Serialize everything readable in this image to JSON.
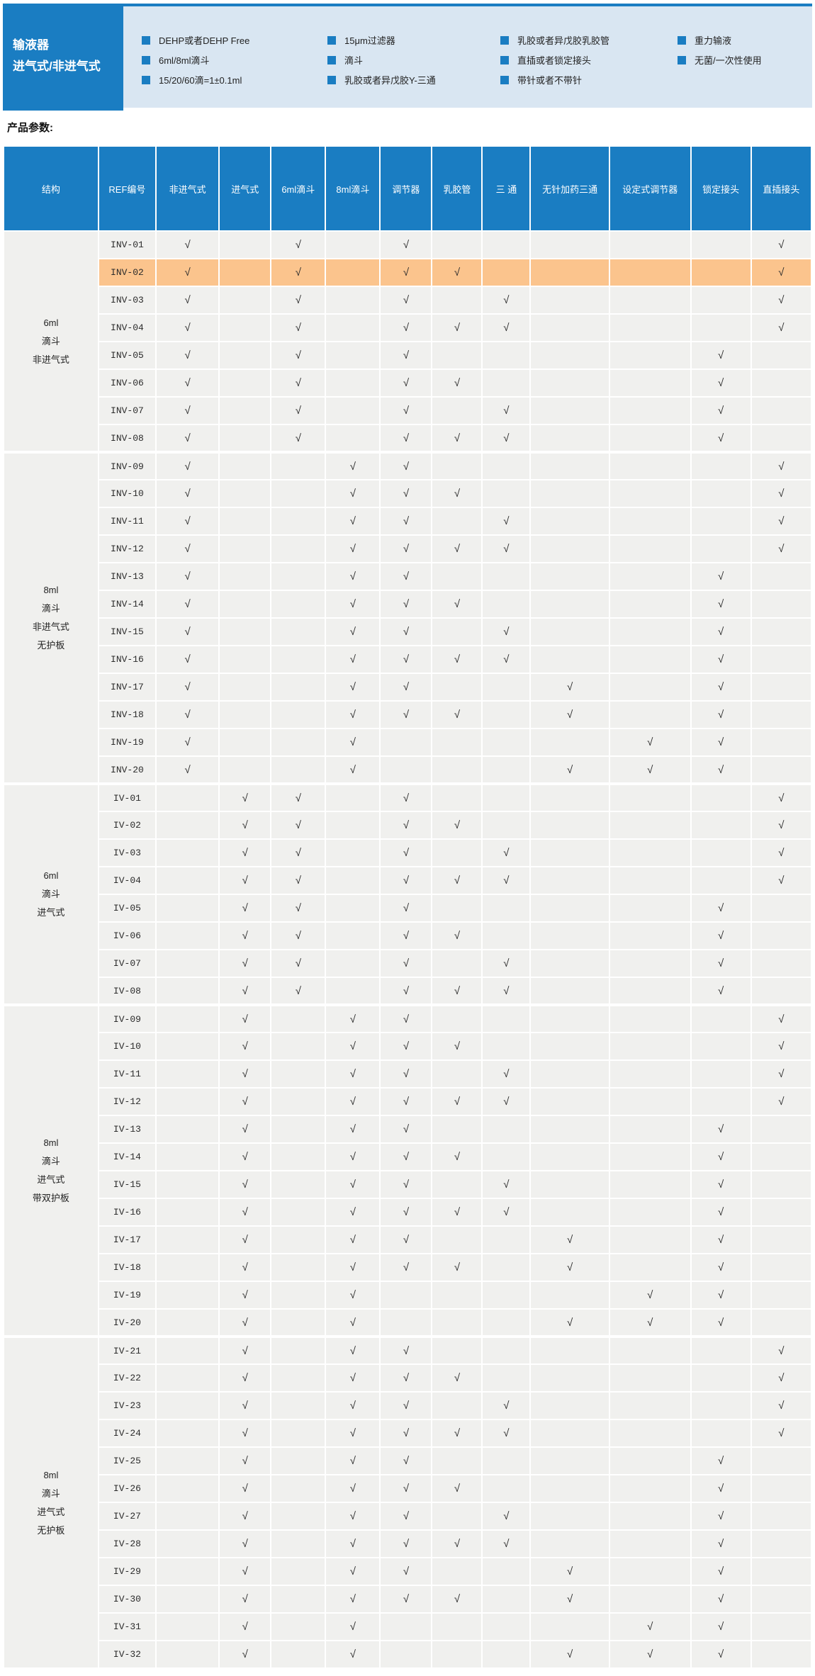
{
  "banner": {
    "title_line1": "输液器",
    "title_line2": "进气式/非进气式",
    "bullet_columns": [
      [
        "DEHP或者DEHP Free",
        "6ml/8ml滴斗",
        "15/20/60滴=1±0.1ml"
      ],
      [
        "15μm过滤器",
        "滴斗",
        "乳胶或者异戊胶Y-三通"
      ],
      [
        "乳胶或者异戊胶乳胶管",
        "直插或者锁定接头",
        "带针或者不带针"
      ],
      [
        "重力输液",
        "无菌/一次性使用"
      ]
    ]
  },
  "section_heading": "产品参数:",
  "colors": {
    "brand_blue": "#1a7dc2",
    "banner_light_blue": "#d9e6f2",
    "cell_gray": "#f0f0ee",
    "highlight_orange": "#fbc48d"
  },
  "table": {
    "check_glyph": "√",
    "headers": [
      "结构",
      "REF编号",
      "非进气式",
      "进气式",
      "6ml滴斗",
      "8ml滴斗",
      "调节器",
      "乳胶管",
      "三 通",
      "无针加药三通",
      "设定式调节器",
      "锁定接头",
      "直插接头"
    ],
    "feature_column_count": 11,
    "groups": [
      {
        "structure_lines": [
          "6ml",
          "滴斗",
          "非进气式"
        ],
        "rows": [
          {
            "ref": "INV-01",
            "highlight": false,
            "features": [
              1,
              0,
              1,
              0,
              1,
              0,
              0,
              0,
              0,
              0,
              1
            ]
          },
          {
            "ref": "INV-02",
            "highlight": true,
            "features": [
              1,
              0,
              1,
              0,
              1,
              1,
              0,
              0,
              0,
              0,
              1
            ]
          },
          {
            "ref": "INV-03",
            "highlight": false,
            "features": [
              1,
              0,
              1,
              0,
              1,
              0,
              1,
              0,
              0,
              0,
              1
            ]
          },
          {
            "ref": "INV-04",
            "highlight": false,
            "features": [
              1,
              0,
              1,
              0,
              1,
              1,
              1,
              0,
              0,
              0,
              1
            ]
          },
          {
            "ref": "INV-05",
            "highlight": false,
            "features": [
              1,
              0,
              1,
              0,
              1,
              0,
              0,
              0,
              0,
              1,
              0
            ]
          },
          {
            "ref": "INV-06",
            "highlight": false,
            "features": [
              1,
              0,
              1,
              0,
              1,
              1,
              0,
              0,
              0,
              1,
              0
            ]
          },
          {
            "ref": "INV-07",
            "highlight": false,
            "features": [
              1,
              0,
              1,
              0,
              1,
              0,
              1,
              0,
              0,
              1,
              0
            ]
          },
          {
            "ref": "INV-08",
            "highlight": false,
            "features": [
              1,
              0,
              1,
              0,
              1,
              1,
              1,
              0,
              0,
              1,
              0
            ]
          }
        ]
      },
      {
        "structure_lines": [
          "8ml",
          "滴斗",
          "非进气式",
          "无护板"
        ],
        "rows": [
          {
            "ref": "INV-09",
            "highlight": false,
            "features": [
              1,
              0,
              0,
              1,
              1,
              0,
              0,
              0,
              0,
              0,
              1
            ]
          },
          {
            "ref": "INV-10",
            "highlight": false,
            "features": [
              1,
              0,
              0,
              1,
              1,
              1,
              0,
              0,
              0,
              0,
              1
            ]
          },
          {
            "ref": "INV-11",
            "highlight": false,
            "features": [
              1,
              0,
              0,
              1,
              1,
              0,
              1,
              0,
              0,
              0,
              1
            ]
          },
          {
            "ref": "INV-12",
            "highlight": false,
            "features": [
              1,
              0,
              0,
              1,
              1,
              1,
              1,
              0,
              0,
              0,
              1
            ]
          },
          {
            "ref": "INV-13",
            "highlight": false,
            "features": [
              1,
              0,
              0,
              1,
              1,
              0,
              0,
              0,
              0,
              1,
              0
            ]
          },
          {
            "ref": "INV-14",
            "highlight": false,
            "features": [
              1,
              0,
              0,
              1,
              1,
              1,
              0,
              0,
              0,
              1,
              0
            ]
          },
          {
            "ref": "INV-15",
            "highlight": false,
            "features": [
              1,
              0,
              0,
              1,
              1,
              0,
              1,
              0,
              0,
              1,
              0
            ]
          },
          {
            "ref": "INV-16",
            "highlight": false,
            "features": [
              1,
              0,
              0,
              1,
              1,
              1,
              1,
              0,
              0,
              1,
              0
            ]
          },
          {
            "ref": "INV-17",
            "highlight": false,
            "features": [
              1,
              0,
              0,
              1,
              1,
              0,
              0,
              1,
              0,
              1,
              0
            ]
          },
          {
            "ref": "INV-18",
            "highlight": false,
            "features": [
              1,
              0,
              0,
              1,
              1,
              1,
              0,
              1,
              0,
              1,
              0
            ]
          },
          {
            "ref": "INV-19",
            "highlight": false,
            "features": [
              1,
              0,
              0,
              1,
              0,
              0,
              0,
              0,
              1,
              1,
              0
            ]
          },
          {
            "ref": "INV-20",
            "highlight": false,
            "features": [
              1,
              0,
              0,
              1,
              0,
              0,
              0,
              1,
              1,
              1,
              0
            ]
          }
        ]
      },
      {
        "structure_lines": [
          "6ml",
          "滴斗",
          "进气式"
        ],
        "rows": [
          {
            "ref": "IV-01",
            "highlight": false,
            "features": [
              0,
              1,
              1,
              0,
              1,
              0,
              0,
              0,
              0,
              0,
              1
            ]
          },
          {
            "ref": "IV-02",
            "highlight": false,
            "features": [
              0,
              1,
              1,
              0,
              1,
              1,
              0,
              0,
              0,
              0,
              1
            ]
          },
          {
            "ref": "IV-03",
            "highlight": false,
            "features": [
              0,
              1,
              1,
              0,
              1,
              0,
              1,
              0,
              0,
              0,
              1
            ]
          },
          {
            "ref": "IV-04",
            "highlight": false,
            "features": [
              0,
              1,
              1,
              0,
              1,
              1,
              1,
              0,
              0,
              0,
              1
            ]
          },
          {
            "ref": "IV-05",
            "highlight": false,
            "features": [
              0,
              1,
              1,
              0,
              1,
              0,
              0,
              0,
              0,
              1,
              0
            ]
          },
          {
            "ref": "IV-06",
            "highlight": false,
            "features": [
              0,
              1,
              1,
              0,
              1,
              1,
              0,
              0,
              0,
              1,
              0
            ]
          },
          {
            "ref": "IV-07",
            "highlight": false,
            "features": [
              0,
              1,
              1,
              0,
              1,
              0,
              1,
              0,
              0,
              1,
              0
            ]
          },
          {
            "ref": "IV-08",
            "highlight": false,
            "features": [
              0,
              1,
              1,
              0,
              1,
              1,
              1,
              0,
              0,
              1,
              0
            ]
          }
        ]
      },
      {
        "structure_lines": [
          "8ml",
          "滴斗",
          "进气式",
          "带双护板"
        ],
        "rows": [
          {
            "ref": "IV-09",
            "highlight": false,
            "features": [
              0,
              1,
              0,
              1,
              1,
              0,
              0,
              0,
              0,
              0,
              1
            ]
          },
          {
            "ref": "IV-10",
            "highlight": false,
            "features": [
              0,
              1,
              0,
              1,
              1,
              1,
              0,
              0,
              0,
              0,
              1
            ]
          },
          {
            "ref": "IV-11",
            "highlight": false,
            "features": [
              0,
              1,
              0,
              1,
              1,
              0,
              1,
              0,
              0,
              0,
              1
            ]
          },
          {
            "ref": "IV-12",
            "highlight": false,
            "features": [
              0,
              1,
              0,
              1,
              1,
              1,
              1,
              0,
              0,
              0,
              1
            ]
          },
          {
            "ref": "IV-13",
            "highlight": false,
            "features": [
              0,
              1,
              0,
              1,
              1,
              0,
              0,
              0,
              0,
              1,
              0
            ]
          },
          {
            "ref": "IV-14",
            "highlight": false,
            "features": [
              0,
              1,
              0,
              1,
              1,
              1,
              0,
              0,
              0,
              1,
              0
            ]
          },
          {
            "ref": "IV-15",
            "highlight": false,
            "features": [
              0,
              1,
              0,
              1,
              1,
              0,
              1,
              0,
              0,
              1,
              0
            ]
          },
          {
            "ref": "IV-16",
            "highlight": false,
            "features": [
              0,
              1,
              0,
              1,
              1,
              1,
              1,
              0,
              0,
              1,
              0
            ]
          },
          {
            "ref": "IV-17",
            "highlight": false,
            "features": [
              0,
              1,
              0,
              1,
              1,
              0,
              0,
              1,
              0,
              1,
              0
            ]
          },
          {
            "ref": "IV-18",
            "highlight": false,
            "features": [
              0,
              1,
              0,
              1,
              1,
              1,
              0,
              1,
              0,
              1,
              0
            ]
          },
          {
            "ref": "IV-19",
            "highlight": false,
            "features": [
              0,
              1,
              0,
              1,
              0,
              0,
              0,
              0,
              1,
              1,
              0
            ]
          },
          {
            "ref": "IV-20",
            "highlight": false,
            "features": [
              0,
              1,
              0,
              1,
              0,
              0,
              0,
              1,
              1,
              1,
              0
            ]
          }
        ]
      },
      {
        "structure_lines": [
          "8ml",
          "滴斗",
          "进气式",
          "无护板"
        ],
        "rows": [
          {
            "ref": "IV-21",
            "highlight": false,
            "features": [
              0,
              1,
              0,
              1,
              1,
              0,
              0,
              0,
              0,
              0,
              1
            ]
          },
          {
            "ref": "IV-22",
            "highlight": false,
            "features": [
              0,
              1,
              0,
              1,
              1,
              1,
              0,
              0,
              0,
              0,
              1
            ]
          },
          {
            "ref": "IV-23",
            "highlight": false,
            "features": [
              0,
              1,
              0,
              1,
              1,
              0,
              1,
              0,
              0,
              0,
              1
            ]
          },
          {
            "ref": "IV-24",
            "highlight": false,
            "features": [
              0,
              1,
              0,
              1,
              1,
              1,
              1,
              0,
              0,
              0,
              1
            ]
          },
          {
            "ref": "IV-25",
            "highlight": false,
            "features": [
              0,
              1,
              0,
              1,
              1,
              0,
              0,
              0,
              0,
              1,
              0
            ]
          },
          {
            "ref": "IV-26",
            "highlight": false,
            "features": [
              0,
              1,
              0,
              1,
              1,
              1,
              0,
              0,
              0,
              1,
              0
            ]
          },
          {
            "ref": "IV-27",
            "highlight": false,
            "features": [
              0,
              1,
              0,
              1,
              1,
              0,
              1,
              0,
              0,
              1,
              0
            ]
          },
          {
            "ref": "IV-28",
            "highlight": false,
            "features": [
              0,
              1,
              0,
              1,
              1,
              1,
              1,
              0,
              0,
              1,
              0
            ]
          },
          {
            "ref": "IV-29",
            "highlight": false,
            "features": [
              0,
              1,
              0,
              1,
              1,
              0,
              0,
              1,
              0,
              1,
              0
            ]
          },
          {
            "ref": "IV-30",
            "highlight": false,
            "features": [
              0,
              1,
              0,
              1,
              1,
              1,
              0,
              1,
              0,
              1,
              0
            ]
          },
          {
            "ref": "IV-31",
            "highlight": false,
            "features": [
              0,
              1,
              0,
              1,
              0,
              0,
              0,
              0,
              1,
              1,
              0
            ]
          },
          {
            "ref": "IV-32",
            "highlight": false,
            "features": [
              0,
              1,
              0,
              1,
              0,
              0,
              0,
              1,
              1,
              1,
              0
            ]
          }
        ]
      }
    ]
  }
}
